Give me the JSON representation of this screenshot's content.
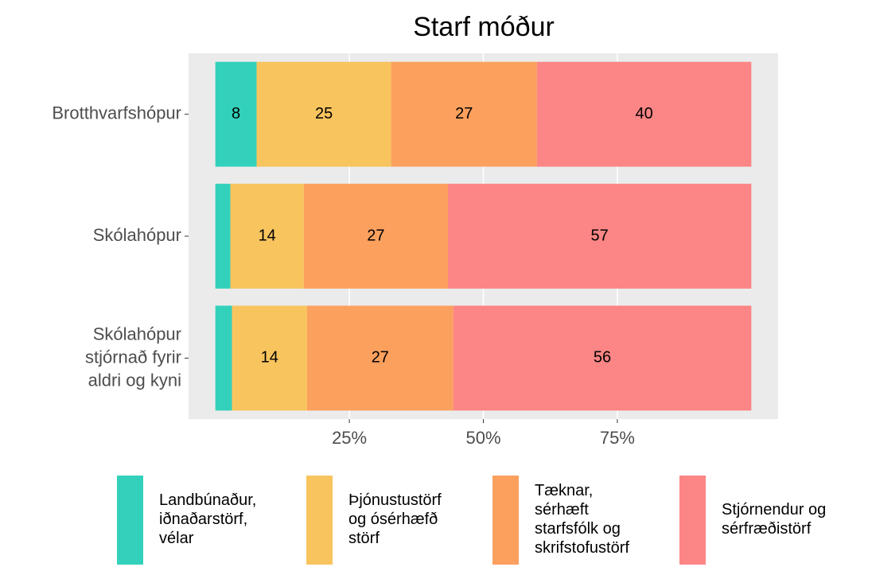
{
  "chart_data": {
    "type": "stacked-bar",
    "orientation": "horizontal",
    "title": "Starf móður",
    "categories": [
      "Brotthvarfshópur",
      "Skólahópur",
      "Skólahópur\nstjórnað fyrir\naldri og kyni"
    ],
    "series": [
      {
        "name": "Landbúnaður,\niðnaðarstörf,\nvélar",
        "color": "#33d1bb",
        "values": [
          7.7,
          2.8,
          3.1
        ],
        "value_labels": [
          "8",
          null,
          null
        ]
      },
      {
        "name": "Þjónustustörf\nog ósérhæfð\nstörf",
        "color": "#f8c45e",
        "values": [
          25.1,
          13.7,
          14.0
        ],
        "value_labels": [
          "25",
          "14",
          "14"
        ]
      },
      {
        "name": "Tæknar,\nsérhæft\nstarfsfólk og\nskrifstofustörf",
        "color": "#fca05e",
        "values": [
          27.2,
          26.9,
          27.3
        ],
        "value_labels": [
          "27",
          "27",
          "27"
        ]
      },
      {
        "name": "Stjórnendur og\nsérfræðistörf",
        "color": "#fc8585",
        "values": [
          40.0,
          56.6,
          55.6
        ],
        "value_labels": [
          "40",
          "57",
          "56"
        ]
      }
    ],
    "xlim": [
      -5,
      105
    ],
    "xticks": [
      {
        "value": 25,
        "label": "25%"
      },
      {
        "value": 50,
        "label": "50%"
      },
      {
        "value": 75,
        "label": "75%"
      }
    ],
    "grid": true,
    "legend": "bottom"
  }
}
